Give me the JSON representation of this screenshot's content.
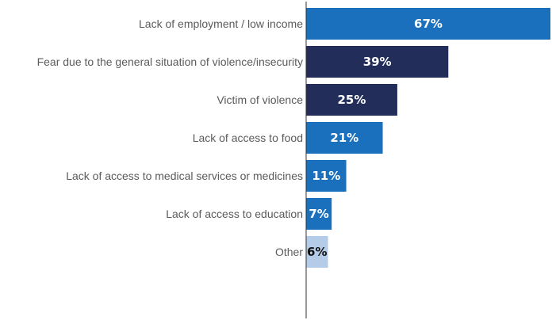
{
  "chart_data": {
    "type": "bar",
    "orientation": "horizontal",
    "categories": [
      "Lack of employment / low income",
      "Fear due to the general situation of violence/insecurity",
      "Victim of violence",
      "Lack of access to food",
      "Lack of access to medical services or medicines",
      "Lack of access to education",
      "Other"
    ],
    "values": [
      67,
      39,
      25,
      21,
      11,
      7,
      6
    ],
    "value_labels": [
      "67%",
      "39%",
      "25%",
      "21%",
      "11%",
      "7%",
      "6%"
    ],
    "bar_colors": [
      "#1a70bd",
      "#222d5a",
      "#222d5a",
      "#1a70bd",
      "#1a70bd",
      "#1a70bd",
      "#b5cce8"
    ],
    "label_colors": [
      "#ffffff",
      "#ffffff",
      "#ffffff",
      "#ffffff",
      "#ffffff",
      "#ffffff",
      "#111111"
    ],
    "xlim": [
      0,
      67
    ],
    "grid": false,
    "legend": "none",
    "title": "",
    "xlabel": "",
    "ylabel": ""
  }
}
